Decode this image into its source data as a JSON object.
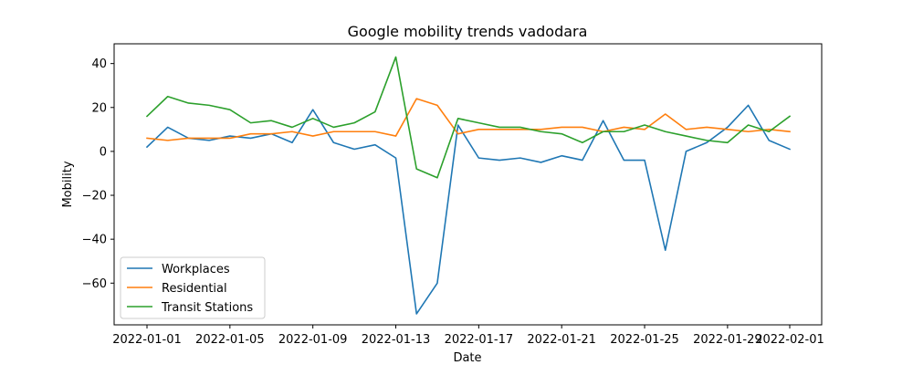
{
  "chart_data": {
    "type": "line",
    "title": "Google mobility trends vadodara",
    "xlabel": "Date",
    "ylabel": "Mobility",
    "x": [
      "2022-01-01",
      "2022-01-02",
      "2022-01-03",
      "2022-01-04",
      "2022-01-05",
      "2022-01-06",
      "2022-01-07",
      "2022-01-08",
      "2022-01-09",
      "2022-01-10",
      "2022-01-11",
      "2022-01-12",
      "2022-01-13",
      "2022-01-14",
      "2022-01-15",
      "2022-01-16",
      "2022-01-17",
      "2022-01-18",
      "2022-01-19",
      "2022-01-20",
      "2022-01-21",
      "2022-01-22",
      "2022-01-23",
      "2022-01-24",
      "2022-01-25",
      "2022-01-26",
      "2022-01-27",
      "2022-01-28",
      "2022-01-29",
      "2022-01-30",
      "2022-01-31",
      "2022-02-01"
    ],
    "xticks": [
      "2022-01-01",
      "2022-01-05",
      "2022-01-09",
      "2022-01-13",
      "2022-01-17",
      "2022-01-21",
      "2022-01-25",
      "2022-01-29",
      "2022-02-01"
    ],
    "yticks": [
      40,
      20,
      0,
      -20,
      -40,
      -60
    ],
    "ytick_labels": [
      "40",
      "20",
      "0",
      "−20",
      "−40",
      "−60"
    ],
    "ylim": [
      -79,
      49
    ],
    "grid": false,
    "legend_position": "lower-left",
    "series": [
      {
        "name": "Workplaces",
        "color": "#1f77b4",
        "values": [
          2,
          11,
          6,
          5,
          7,
          6,
          8,
          4,
          19,
          4,
          1,
          3,
          -3,
          -74,
          -60,
          12,
          -3,
          -4,
          -3,
          -5,
          -2,
          -4,
          14,
          -4,
          -4,
          -45,
          0,
          4,
          11,
          21,
          5,
          1
        ]
      },
      {
        "name": "Residential",
        "color": "#ff7f0e",
        "values": [
          6,
          5,
          6,
          6,
          6,
          8,
          8,
          9,
          7,
          9,
          9,
          9,
          7,
          24,
          21,
          8,
          10,
          10,
          10,
          10,
          11,
          11,
          9,
          11,
          10,
          17,
          10,
          11,
          10,
          9,
          10,
          9
        ]
      },
      {
        "name": "Transit Stations",
        "color": "#2ca02c",
        "values": [
          16,
          25,
          22,
          21,
          19,
          13,
          14,
          11,
          15,
          11,
          13,
          18,
          43,
          -8,
          -12,
          15,
          13,
          11,
          11,
          9,
          8,
          4,
          9,
          9,
          12,
          9,
          7,
          5,
          4,
          12,
          9,
          16
        ]
      }
    ]
  }
}
